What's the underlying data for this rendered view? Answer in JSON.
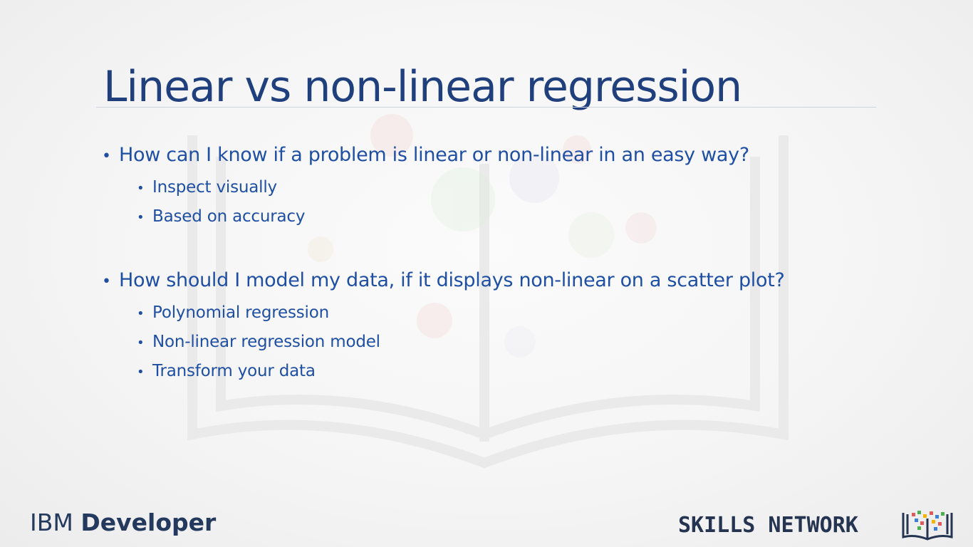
{
  "slide": {
    "title": "Linear vs non-linear regression",
    "sections": [
      {
        "question": "How can I know if a problem is linear or non-linear in an easy way?",
        "items": [
          "Inspect visually",
          "Based on accuracy"
        ]
      },
      {
        "question": "How should I model my data, if it displays non-linear on a scatter plot?",
        "items": [
          "Polynomial regression",
          "Non-linear regression model",
          "Transform your data"
        ]
      }
    ]
  },
  "footer": {
    "brand_left_prefix": "IBM",
    "brand_left_bold": "Developer",
    "brand_right_text": "SKILLS NETWORK",
    "brand_right_logo_icon": "book-icon"
  },
  "colors": {
    "title": "#1f3f7d",
    "bullet_text": "#1f4fa3",
    "footer_text": "#233a5e"
  }
}
